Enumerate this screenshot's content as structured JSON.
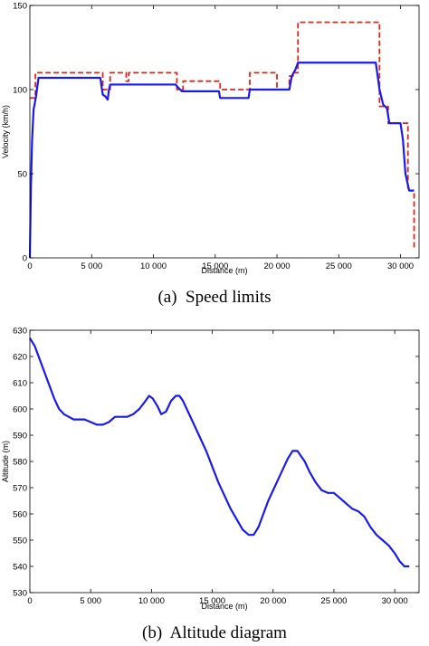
{
  "chart_data": [
    {
      "type": "line",
      "caption": "(a)  Speed limits",
      "xlabel": "Distance (m)",
      "ylabel": "Velocity (km/h)",
      "xlim": [
        0,
        31500
      ],
      "ylim": [
        0,
        150
      ],
      "xticks": [
        0,
        5000,
        10000,
        15000,
        20000,
        25000,
        30000
      ],
      "xtick_labels": [
        "0",
        "5 000",
        "10 000",
        "15 000",
        "20 000",
        "25 000",
        "30 000"
      ],
      "yticks": [
        0,
        50,
        100,
        150
      ],
      "ytick_labels": [
        "0",
        "50",
        "100",
        "150"
      ],
      "grid": false,
      "series": [
        {
          "color": "#d62a1e",
          "style": "dashed",
          "x": [
            0,
            0,
            450,
            450,
            5900,
            5900,
            6500,
            6500,
            7800,
            7800,
            8000,
            8000,
            11900,
            11900,
            12400,
            12400,
            15400,
            15400,
            17800,
            17800,
            20000,
            20000,
            21000,
            21000,
            21300,
            21300,
            21700,
            21700,
            28300,
            28300,
            29000,
            29000,
            30600,
            30600,
            31100,
            31100
          ],
          "y": [
            95,
            95,
            95,
            110,
            110,
            100,
            100,
            110,
            110,
            105,
            105,
            110,
            110,
            100,
            100,
            105,
            105,
            100,
            100,
            110,
            110,
            100,
            100,
            108,
            108,
            110,
            110,
            140,
            140,
            90,
            90,
            80,
            80,
            40,
            40,
            5
          ]
        },
        {
          "color": "#1a1aee",
          "style": "solid",
          "x": [
            0,
            80,
            180,
            300,
            500,
            700,
            5700,
            5900,
            6100,
            6300,
            6400,
            6500,
            11800,
            11900,
            12300,
            12400,
            15300,
            15400,
            17700,
            17800,
            21000,
            21200,
            21500,
            21700,
            28000,
            28300,
            28600,
            28900,
            29100,
            30000,
            30200,
            30400,
            30700,
            31100
          ],
          "y": [
            0,
            40,
            70,
            88,
            96,
            107,
            107,
            97,
            96,
            94,
            100,
            103,
            103,
            102,
            99,
            99,
            99,
            95,
            95,
            100,
            100,
            108,
            112,
            116,
            116,
            100,
            91,
            89,
            80,
            80,
            70,
            50,
            40,
            40
          ]
        }
      ]
    },
    {
      "type": "line",
      "caption": "(b)  Altitude diagram",
      "xlabel": "Distance (m)",
      "ylabel": "Altitude (m)",
      "xlim": [
        0,
        32000
      ],
      "ylim": [
        530,
        630
      ],
      "xticks": [
        0,
        5000,
        10000,
        15000,
        20000,
        25000,
        30000
      ],
      "xtick_labels": [
        "0",
        "5 000",
        "10 000",
        "15 000",
        "20 000",
        "25 000",
        "30 000"
      ],
      "yticks": [
        530,
        540,
        550,
        560,
        570,
        580,
        590,
        600,
        610,
        620,
        630
      ],
      "ytick_labels": [
        "530",
        "540",
        "550",
        "560",
        "570",
        "580",
        "590",
        "600",
        "610",
        "620",
        "630"
      ],
      "grid": false,
      "series": [
        {
          "color": "#1a1aee",
          "style": "solid",
          "x": [
            0,
            400,
            800,
            1200,
            1600,
            2000,
            2400,
            2800,
            3200,
            3600,
            4000,
            4500,
            5000,
            5500,
            6000,
            6500,
            7000,
            7500,
            8000,
            8500,
            9000,
            9500,
            9800,
            10100,
            10500,
            10800,
            11200,
            11600,
            12000,
            12300,
            12600,
            13000,
            13500,
            14000,
            14500,
            15000,
            15500,
            16000,
            16500,
            17000,
            17500,
            18000,
            18400,
            18800,
            19200,
            19600,
            20000,
            20400,
            20800,
            21200,
            21600,
            22000,
            22300,
            22600,
            23000,
            23500,
            24000,
            24500,
            25000,
            25500,
            26000,
            26500,
            27000,
            27500,
            28000,
            28500,
            29000,
            29500,
            30000,
            30400,
            30800,
            31200
          ],
          "y": [
            627,
            624,
            619,
            614,
            609,
            604,
            600,
            598,
            597,
            596,
            596,
            596,
            595,
            594,
            594,
            595,
            597,
            597,
            597,
            598,
            600,
            603,
            605,
            604,
            601,
            598,
            599,
            603,
            605,
            605,
            603,
            599,
            594,
            589,
            584,
            578,
            572,
            567,
            562,
            558,
            554,
            552,
            552,
            555,
            560,
            565,
            569,
            573,
            577,
            581,
            584,
            584,
            582,
            580,
            576,
            572,
            569,
            568,
            568,
            566,
            564,
            562,
            561,
            559,
            555,
            552,
            550,
            548,
            545,
            542,
            540,
            540
          ]
        }
      ]
    }
  ]
}
